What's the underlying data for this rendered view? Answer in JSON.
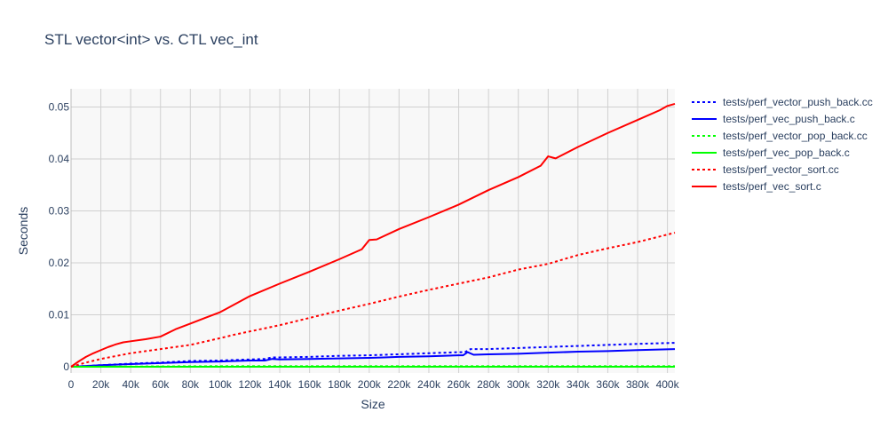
{
  "chart_data": {
    "type": "line",
    "title": "STL vector<int> vs. CTL vec_int",
    "xlabel": "Size",
    "ylabel": "Seconds",
    "xlim": [
      0,
      405000
    ],
    "ylim": [
      -0.0012,
      0.0535
    ],
    "x_ticks": [
      0,
      20000,
      40000,
      60000,
      80000,
      100000,
      120000,
      140000,
      160000,
      180000,
      200000,
      220000,
      240000,
      260000,
      280000,
      300000,
      320000,
      340000,
      360000,
      380000,
      400000
    ],
    "x_tick_labels": [
      "0",
      "20k",
      "40k",
      "60k",
      "80k",
      "100k",
      "120k",
      "140k",
      "160k",
      "180k",
      "200k",
      "220k",
      "240k",
      "260k",
      "280k",
      "300k",
      "320k",
      "340k",
      "360k",
      "380k",
      "400k"
    ],
    "y_ticks": [
      0,
      0.01,
      0.02,
      0.03,
      0.04,
      0.05
    ],
    "y_tick_labels": [
      "0",
      "0.01",
      "0.02",
      "0.03",
      "0.04",
      "0.05"
    ],
    "grid": true,
    "legend_position": "top-right, outside plot",
    "plot_background": "#f8f8f8",
    "series": [
      {
        "name": "tests/perf_vector_push_back.cc",
        "color": "#0000ff",
        "dash": "dot",
        "x": [
          0,
          20000,
          40000,
          60000,
          80000,
          100000,
          120000,
          130000,
          135000,
          140000,
          160000,
          180000,
          200000,
          220000,
          240000,
          260000,
          264000,
          268000,
          280000,
          300000,
          320000,
          340000,
          360000,
          380000,
          405000
        ],
        "y": [
          0,
          0.0003,
          0.0006,
          0.0008,
          0.0011,
          0.0012,
          0.0014,
          0.0015,
          0.0018,
          0.0018,
          0.0019,
          0.0021,
          0.0022,
          0.0024,
          0.0026,
          0.0028,
          0.0028,
          0.0034,
          0.0034,
          0.0036,
          0.0038,
          0.004,
          0.0042,
          0.0044,
          0.0046
        ]
      },
      {
        "name": "tests/perf_vec_push_back.c",
        "color": "#0000ff",
        "dash": "solid",
        "x": [
          0,
          20000,
          40000,
          60000,
          80000,
          100000,
          120000,
          130000,
          135000,
          140000,
          160000,
          180000,
          200000,
          210000,
          220000,
          240000,
          260000,
          263000,
          266000,
          270000,
          280000,
          300000,
          320000,
          340000,
          360000,
          380000,
          405000
        ],
        "y": [
          0,
          0.0003,
          0.0005,
          0.0007,
          0.0009,
          0.001,
          0.0012,
          0.0012,
          0.0015,
          0.0014,
          0.0015,
          0.0016,
          0.0017,
          0.0018,
          0.0019,
          0.002,
          0.0022,
          0.0022,
          0.0028,
          0.0023,
          0.0024,
          0.0025,
          0.0027,
          0.0029,
          0.003,
          0.0032,
          0.0034
        ]
      },
      {
        "name": "tests/perf_vector_pop_back.cc",
        "color": "#00ff00",
        "dash": "dot",
        "x": [
          0,
          100000,
          200000,
          300000,
          405000
        ],
        "y": [
          0,
          0.0001,
          0.0001,
          0.0001,
          0.0001
        ]
      },
      {
        "name": "tests/perf_vec_pop_back.c",
        "color": "#00ff00",
        "dash": "solid",
        "x": [
          0,
          100000,
          200000,
          300000,
          405000
        ],
        "y": [
          0,
          0,
          0,
          0,
          0
        ]
      },
      {
        "name": "tests/perf_vector_sort.cc",
        "color": "#ff0000",
        "dash": "dot",
        "x": [
          0,
          10000,
          20000,
          40000,
          60000,
          80000,
          100000,
          110000,
          120000,
          140000,
          160000,
          180000,
          200000,
          220000,
          240000,
          260000,
          280000,
          300000,
          320000,
          340000,
          360000,
          380000,
          405000
        ],
        "y": [
          0,
          0.0008,
          0.0015,
          0.0026,
          0.0034,
          0.0042,
          0.0055,
          0.0062,
          0.0068,
          0.008,
          0.0094,
          0.0108,
          0.0121,
          0.0135,
          0.0148,
          0.016,
          0.0172,
          0.0187,
          0.0198,
          0.0215,
          0.0228,
          0.024,
          0.0258
        ]
      },
      {
        "name": "tests/perf_vec_sort.c",
        "color": "#ff0000",
        "dash": "solid",
        "x": [
          0,
          5000,
          10000,
          15000,
          20000,
          25000,
          30000,
          35000,
          40000,
          50000,
          60000,
          70000,
          80000,
          90000,
          100000,
          120000,
          140000,
          160000,
          180000,
          195000,
          200000,
          205000,
          220000,
          240000,
          260000,
          280000,
          300000,
          315000,
          320000,
          325000,
          340000,
          360000,
          380000,
          395000,
          400000,
          405000
        ],
        "y": [
          0,
          0.001,
          0.0019,
          0.0026,
          0.0032,
          0.0038,
          0.0043,
          0.0047,
          0.0049,
          0.0053,
          0.0058,
          0.0072,
          0.0083,
          0.0094,
          0.0105,
          0.0136,
          0.016,
          0.0183,
          0.0207,
          0.0226,
          0.0244,
          0.0245,
          0.0265,
          0.0288,
          0.0312,
          0.034,
          0.0365,
          0.0387,
          0.0405,
          0.0401,
          0.0423,
          0.045,
          0.0475,
          0.0494,
          0.0502,
          0.0506
        ]
      }
    ]
  }
}
